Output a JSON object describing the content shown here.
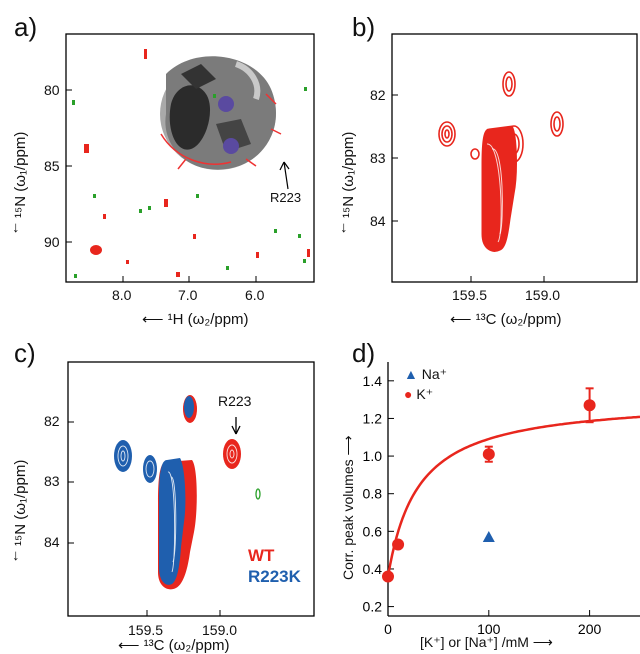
{
  "panels": {
    "a": {
      "label": "a)",
      "y_label": "¹⁵N (ω₁/ppm)",
      "x_label": "¹H (ω₂/ppm)",
      "x_ticks": [
        "8.0",
        "7.0",
        "6.0"
      ],
      "y_ticks": [
        "80",
        "85",
        "90"
      ],
      "annotation": "R223"
    },
    "b": {
      "label": "b)",
      "y_label": "¹⁵N (ω₁/ppm)",
      "x_label": "¹³C (ω₂/ppm)",
      "x_ticks": [
        "159.5",
        "159.0"
      ],
      "y_ticks": [
        "82",
        "83",
        "84"
      ]
    },
    "c": {
      "label": "c)",
      "y_label": "¹⁵N (ω₁/ppm)",
      "x_label": "¹³C (ω₂/ppm)",
      "x_ticks": [
        "159.5",
        "159.0"
      ],
      "y_ticks": [
        "82",
        "83",
        "84"
      ],
      "annotation": "R223",
      "legend": [
        {
          "name": "WT",
          "color": "#e8261d"
        },
        {
          "name": "R223K",
          "color": "#1f5fae"
        }
      ]
    },
    "d": {
      "label": "d)",
      "y_label": "Corr. peak volumes",
      "x_label": "[K⁺] or [Na⁺] /mM",
      "x_ticks": [
        "0",
        "100",
        "200"
      ],
      "y_ticks": [
        "0.2",
        "0.4",
        "0.6",
        "0.8",
        "1.0",
        "1.2",
        "1.4"
      ],
      "legend": [
        {
          "name": "Na⁺",
          "color": "#1f5fae"
        },
        {
          "name": "K⁺",
          "color": "#e8261d"
        }
      ]
    }
  },
  "chart_data": [
    {
      "type": "scatter",
      "panel": "d",
      "xlim": [
        0,
        250
      ],
      "ylim": [
        0.15,
        1.5
      ],
      "series": [
        {
          "name": "K⁺",
          "color": "#e8261d",
          "x": [
            0,
            10,
            100,
            200
          ],
          "y": [
            0.36,
            0.53,
            1.01,
            1.27
          ],
          "yerr": [
            0,
            0,
            0.04,
            0.09
          ]
        },
        {
          "name": "Na⁺",
          "color": "#1f5fae",
          "x": [
            100
          ],
          "y": [
            0.57
          ]
        }
      ],
      "fit": {
        "type": "hyperbolic",
        "color": "#e8261d"
      }
    }
  ]
}
